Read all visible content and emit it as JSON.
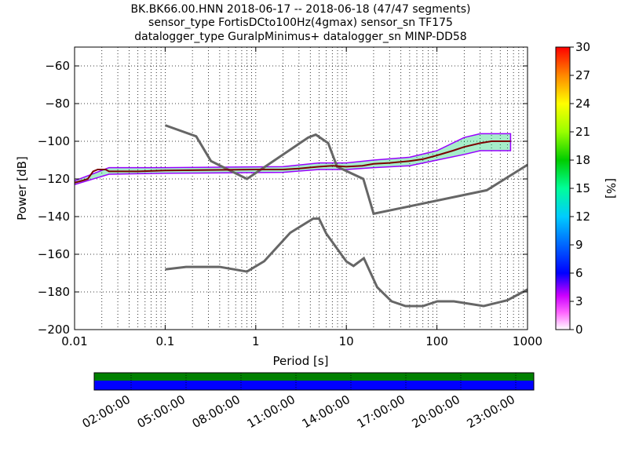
{
  "title_lines": [
    "BK.BK66.00.HNN   2018-06-17 -- 2018-06-18  (47/47 segments)",
    "sensor_type FortisDCto100Hz(4gmax) sensor_sn TF175",
    "datalogger_type GuralpMinimus+ datalogger_sn MINP-DD58"
  ],
  "chart_data": {
    "type": "heatmap",
    "xlabel": "Period [s]",
    "ylabel": "Power [dB]",
    "x_scale": "log",
    "xlim": [
      0.01,
      1000
    ],
    "ylim": [
      -200,
      -50
    ],
    "x_ticks": [
      {
        "value": 0.01,
        "label": "0.01"
      },
      {
        "value": 0.1,
        "label": "0.1"
      },
      {
        "value": 1,
        "label": "1"
      },
      {
        "value": 10,
        "label": "10"
      },
      {
        "value": 100,
        "label": "100"
      },
      {
        "value": 1000,
        "label": "1000"
      }
    ],
    "y_ticks": [
      -60,
      -80,
      -100,
      -120,
      -140,
      -160,
      -180,
      -200
    ],
    "grid": true,
    "colorbar": {
      "label": "[%]",
      "range": [
        0,
        30
      ],
      "ticks": [
        0,
        3,
        6,
        9,
        12,
        15,
        18,
        21,
        24,
        27,
        30
      ]
    },
    "noise_models": [
      {
        "name": "NHNM",
        "x": [
          0.1,
          0.22,
          0.32,
          0.8,
          3.8,
          4.6,
          6.3,
          7.9,
          15.4,
          20,
          354.8,
          1000
        ],
        "y": [
          -91.5,
          -97.4,
          -110.5,
          -120,
          -98,
          -96.5,
          -101,
          -113.5,
          -120,
          -138.5,
          -126,
          -112.5
        ]
      },
      {
        "name": "NLNM",
        "x": [
          0.1,
          0.17,
          0.4,
          0.8,
          1.24,
          2.4,
          4.3,
          5,
          6,
          10,
          12,
          15.6,
          21.9,
          31.6,
          45,
          70,
          101,
          154,
          328,
          600,
          1000
        ],
        "y": [
          -168,
          -166.7,
          -166.7,
          -169.2,
          -163.7,
          -148.6,
          -141.1,
          -141.1,
          -149,
          -163.8,
          -166.2,
          -162.1,
          -177.5,
          -185,
          -187.5,
          -187.5,
          -185,
          -185,
          -187.5,
          -184.4,
          -178.7
        ]
      }
    ],
    "psd_mode_curve": {
      "x": [
        0.01,
        0.012,
        0.014,
        0.016,
        0.018,
        0.022,
        0.024,
        0.05,
        0.1,
        1,
        2,
        3,
        5,
        7,
        10,
        15,
        20,
        30,
        50,
        70,
        100,
        150,
        200,
        300,
        400,
        500,
        650
      ],
      "y": [
        -122,
        -121,
        -120,
        -116,
        -115,
        -115,
        -116,
        -116,
        -115.5,
        -115,
        -115,
        -114.5,
        -113.5,
        -113,
        -113.5,
        -113,
        -112,
        -111.5,
        -110.5,
        -109.5,
        -107.5,
        -105,
        -103,
        -101,
        -100,
        -100,
        -100
      ]
    },
    "psd_spread": {
      "x": [
        0.01,
        0.024,
        0.1,
        2,
        5,
        10,
        20,
        50,
        100,
        200,
        300,
        650
      ],
      "y_low": [
        -123,
        -117.5,
        -117,
        -116.5,
        -115,
        -115,
        -114,
        -113,
        -110,
        -107,
        -105,
        -105
      ],
      "y_high": [
        -121,
        -114,
        -114,
        -113.5,
        -111.5,
        -111.5,
        -110,
        -108.5,
        -105,
        -98,
        -96,
        -96
      ]
    },
    "coverage_bar": {
      "tick_labels": [
        "02:00:00",
        "05:00:00",
        "08:00:00",
        "11:00:00",
        "14:00:00",
        "17:00:00",
        "20:00:00",
        "23:00:00"
      ],
      "top_color": "#008000",
      "bottom_color": "#0000ff"
    }
  }
}
